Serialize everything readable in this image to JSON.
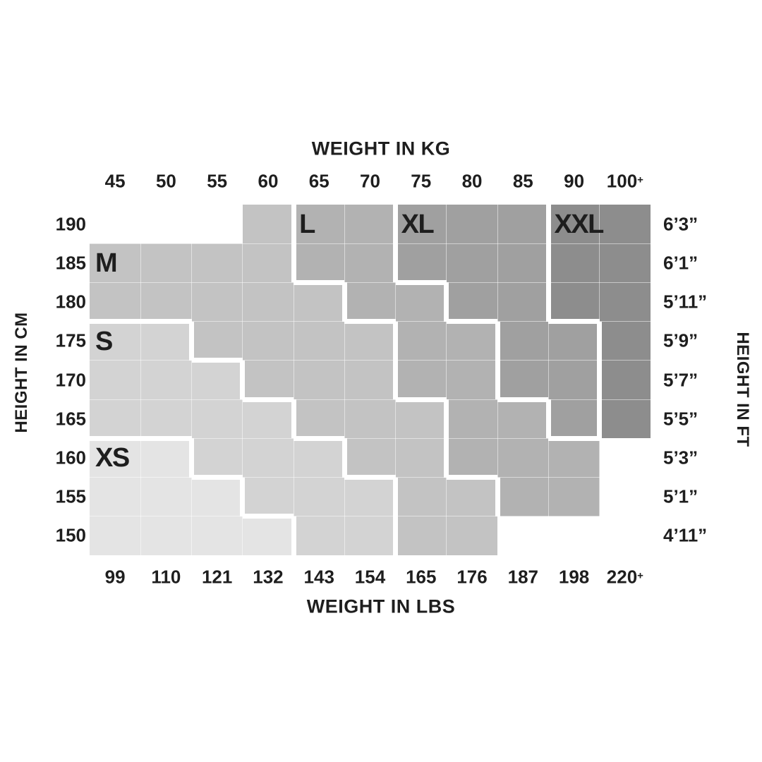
{
  "titles": {
    "top": "WEIGHT IN KG",
    "bottom": "WEIGHT IN LBS",
    "left": "HEIGHT IN CM",
    "right": "HEIGHT IN FT"
  },
  "text_color": "#1e1e1e",
  "sizes": {
    "XS": {
      "label": "XS",
      "color": "#e4e4e4"
    },
    "S": {
      "label": "S",
      "color": "#d3d3d3"
    },
    "M": {
      "label": "M",
      "color": "#c3c3c3"
    },
    "L": {
      "label": "L",
      "color": "#b2b2b2"
    },
    "XL": {
      "label": "XL",
      "color": "#a0a0a0"
    },
    "XXL": {
      "label": "XXL",
      "color": "#8d8d8d"
    }
  },
  "size_label_cells": {
    "M": {
      "row": 1,
      "col": 0
    },
    "S": {
      "row": 3,
      "col": 0
    },
    "XS": {
      "row": 6,
      "col": 0
    },
    "L": {
      "row": 0,
      "col": 4
    },
    "XL": {
      "row": 0,
      "col": 6
    },
    "XXL": {
      "row": 0,
      "col": 9
    }
  },
  "chart_data": {
    "type": "heatmap",
    "title": "Apparel size chart: weight vs height",
    "x_top_label": "WEIGHT IN KG",
    "x_bottom_label": "WEIGHT IN LBS",
    "y_left_label": "HEIGHT IN CM",
    "y_right_label": "HEIGHT IN FT",
    "kg_ticks": [
      "45",
      "50",
      "55",
      "60",
      "65",
      "70",
      "75",
      "80",
      "85",
      "90",
      "100+"
    ],
    "lbs_ticks": [
      "99",
      "110",
      "121",
      "132",
      "143",
      "154",
      "165",
      "176",
      "187",
      "198",
      "220+"
    ],
    "cm_ticks": [
      "190",
      "185",
      "180",
      "175",
      "170",
      "165",
      "160",
      "155",
      "150"
    ],
    "ft_ticks": [
      "6’3”",
      "6’1”",
      "5’11”",
      "5’9”",
      "5’7”",
      "5’5”",
      "5’3”",
      "5’1”",
      "4’11”"
    ],
    "legend_sizes": [
      "XS",
      "S",
      "M",
      "L",
      "XL",
      "XXL"
    ],
    "cells": [
      [
        "",
        "",
        "",
        "M",
        "L",
        "L",
        "XL",
        "XL",
        "XL",
        "XXL",
        "XXL"
      ],
      [
        "M",
        "M",
        "M",
        "M",
        "L",
        "L",
        "XL",
        "XL",
        "XL",
        "XXL",
        "XXL"
      ],
      [
        "M",
        "M",
        "M",
        "M",
        "M",
        "L",
        "L",
        "XL",
        "XL",
        "XXL",
        "XXL"
      ],
      [
        "S",
        "S",
        "M",
        "M",
        "M",
        "M",
        "L",
        "L",
        "XL",
        "XL",
        "XXL"
      ],
      [
        "S",
        "S",
        "S",
        "M",
        "M",
        "M",
        "L",
        "L",
        "XL",
        "XL",
        "XXL"
      ],
      [
        "S",
        "S",
        "S",
        "S",
        "M",
        "M",
        "M",
        "L",
        "L",
        "XL",
        "XXL"
      ],
      [
        "XS",
        "XS",
        "S",
        "S",
        "S",
        "M",
        "M",
        "L",
        "L",
        "L",
        ""
      ],
      [
        "XS",
        "XS",
        "XS",
        "S",
        "S",
        "S",
        "M",
        "M",
        "L",
        "L",
        ""
      ],
      [
        "XS",
        "XS",
        "XS",
        "XS",
        "S",
        "S",
        "M",
        "M",
        "",
        "",
        ""
      ]
    ]
  }
}
